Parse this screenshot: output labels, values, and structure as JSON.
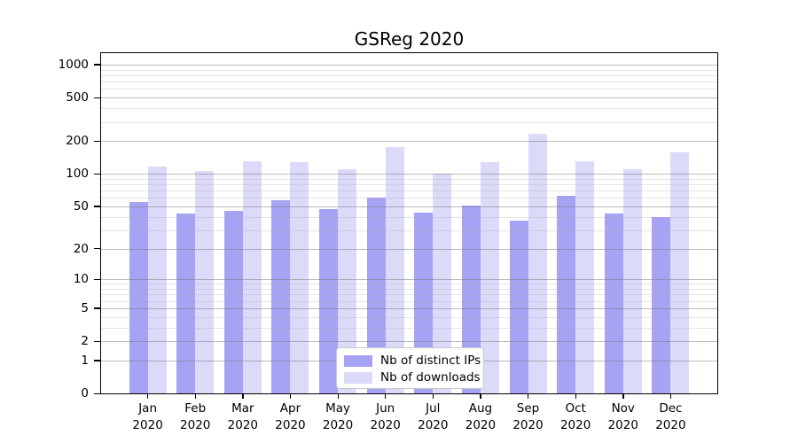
{
  "chart_data": {
    "type": "bar",
    "title": "GSReg 2020",
    "year": "2020",
    "categories": [
      "Jan",
      "Feb",
      "Mar",
      "Apr",
      "May",
      "Jun",
      "Jul",
      "Aug",
      "Sep",
      "Oct",
      "Nov",
      "Dec"
    ],
    "series": [
      {
        "name": "Nb of distinct IPs",
        "color": "#a6a3f4",
        "values": [
          55,
          43,
          45,
          57,
          47,
          60,
          44,
          51,
          37,
          63,
          43,
          40
        ]
      },
      {
        "name": "Nb of downloads",
        "color": "#dbdaf9",
        "values": [
          117,
          107,
          130,
          128,
          111,
          177,
          100,
          127,
          235,
          131,
          111,
          157
        ]
      }
    ],
    "yscale": "log1p",
    "yticks": [
      0,
      1,
      2,
      5,
      10,
      20,
      50,
      100,
      200,
      500,
      1000
    ],
    "yticks_minor": [
      3,
      4,
      6,
      7,
      8,
      9,
      30,
      40,
      60,
      70,
      80,
      90,
      300,
      400,
      600,
      700,
      800,
      900
    ],
    "ylim": [
      0,
      1300
    ],
    "xlabel": "",
    "ylabel": "",
    "grid": "both",
    "legend_position": "lower center inside"
  },
  "colors": {
    "axis": "#000000",
    "grid_major": "#787878",
    "grid_minor": "#aaaaaa",
    "legend_border": "#c9c9c9",
    "legend_background": "#ffffff",
    "plot_background": "#ffffff"
  }
}
